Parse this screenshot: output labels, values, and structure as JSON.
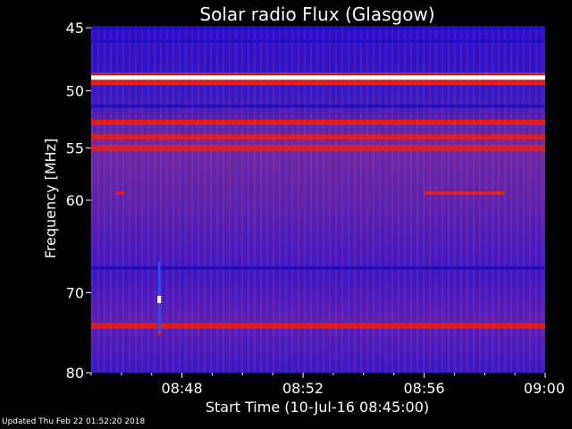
{
  "chart_data": {
    "type": "heatmap",
    "title": "Solar radio Flux (Glasgow)",
    "xlabel": "Start Time (10-Jul-16 08:45:00)",
    "ylabel": "Frequency [MHz]",
    "x_unit": "minutes",
    "xlim": [
      "08:45",
      "09:00"
    ],
    "x_ticks": [
      "08:48",
      "08:52",
      "08:56",
      "09:00"
    ],
    "ylim": [
      45,
      80
    ],
    "y_scale": "log",
    "y_ticks": [
      45,
      50,
      55,
      60,
      70,
      80
    ],
    "colors": {
      "background_low": "#2010c0",
      "mid": "#6a2aa8",
      "high": "#e02020",
      "peak": "#ffffff"
    },
    "bands": [
      {
        "freq": 45.0,
        "intensity": "low"
      },
      {
        "freq": 46.0,
        "intensity": "low"
      },
      {
        "freq": 48.9,
        "intensity": "peak"
      },
      {
        "freq": 49.3,
        "intensity": "high"
      },
      {
        "freq": 51.3,
        "intensity": "low"
      },
      {
        "freq": 52.7,
        "intensity": "high"
      },
      {
        "freq": 54.0,
        "intensity": "high"
      },
      {
        "freq": 55.0,
        "intensity": "high"
      },
      {
        "freq": 67.2,
        "intensity": "low"
      },
      {
        "freq": 74.0,
        "intensity": "high"
      }
    ],
    "bursts": [
      {
        "time": "08:47:15",
        "freq_start": 66.5,
        "freq_end": 75.0,
        "peak_freq": 70.8,
        "intensity": "peak"
      },
      {
        "time_start": "08:56:00",
        "time_end": "08:58:40",
        "freq": 59.3,
        "intensity": "high"
      },
      {
        "time_start": "08:45:50",
        "time_end": "08:46:05",
        "freq": 59.3,
        "intensity": "high"
      }
    ]
  },
  "footer": {
    "updated": "Updated Thu Feb 22 01:52:20 2018"
  }
}
